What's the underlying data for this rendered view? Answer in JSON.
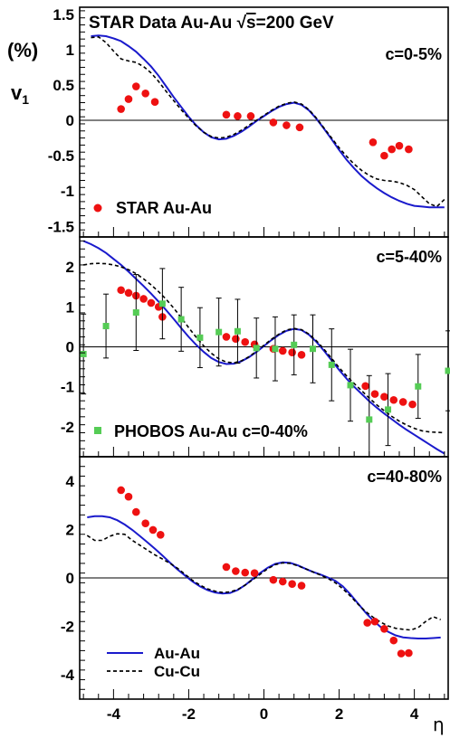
{
  "figure": {
    "title_prefix": "STAR Data  Au-Au  ",
    "title_sqrt": "√",
    "title_s": "s",
    "title_suffix": "=200 GeV",
    "ylabel_top": "(%)",
    "ylabel_v": "v",
    "ylabel_sub": "1",
    "xlabel": "η"
  },
  "colors": {
    "star": "#ee1111",
    "phobos": "#55cc55",
    "au_line": "#1a1acc",
    "cu_line": "#000000"
  },
  "legend": {
    "au": "Au-Au",
    "cu": "Cu-Cu"
  },
  "chart_data": [
    {
      "type": "scatter",
      "centrality_label": "c=0-5%",
      "data_legend": "STAR  Au-Au",
      "xlabel": "η",
      "ylabel": "v1 (%)",
      "xlim": [
        -4.9,
        4.9
      ],
      "ylim": [
        -1.65,
        1.6
      ],
      "yticks": [
        -1.5,
        -1,
        -0.5,
        0,
        0.5,
        1,
        1.5
      ],
      "ytick_labels": [
        "-1.5",
        "-1",
        "-0.5",
        "0",
        "0.5",
        "1",
        "1.5"
      ],
      "series": [
        {
          "name": "STAR  Au-Au",
          "kind": "points",
          "x": [
            -3.8,
            -3.6,
            -3.4,
            -3.15,
            -2.9,
            -1.0,
            -0.7,
            -0.35,
            0.25,
            0.6,
            0.95,
            2.9,
            3.2,
            3.4,
            3.6,
            3.85
          ],
          "y": [
            0.16,
            0.3,
            0.48,
            0.38,
            0.26,
            0.08,
            0.06,
            0.06,
            -0.03,
            -0.07,
            -0.1,
            -0.31,
            -0.5,
            -0.41,
            -0.36,
            -0.41
          ]
        },
        {
          "name": "Au-Au",
          "kind": "line",
          "x": [
            -4.6,
            -4.4,
            -4.2,
            -4.0,
            -3.8,
            -3.6,
            -3.4,
            -3.2,
            -3.0,
            -2.8,
            -2.6,
            -2.4,
            -2.2,
            -2.0,
            -1.8,
            -1.6,
            -1.4,
            -1.2,
            -1.0,
            -0.8,
            -0.6,
            -0.4,
            -0.2,
            0.0,
            0.2,
            0.4,
            0.6,
            0.8,
            1.0,
            1.2,
            1.4,
            1.6,
            1.8,
            2.0,
            2.2,
            2.4,
            2.6,
            2.8,
            3.0,
            3.2,
            3.4,
            3.6,
            3.8,
            4.0,
            4.2,
            4.4,
            4.6,
            4.8
          ],
          "y": [
            1.19,
            1.2,
            1.19,
            1.16,
            1.12,
            1.05,
            0.97,
            0.87,
            0.76,
            0.63,
            0.48,
            0.33,
            0.19,
            0.05,
            -0.07,
            -0.17,
            -0.24,
            -0.27,
            -0.26,
            -0.22,
            -0.16,
            -0.09,
            -0.01,
            0.06,
            0.13,
            0.19,
            0.23,
            0.25,
            0.22,
            0.14,
            0.02,
            -0.12,
            -0.27,
            -0.42,
            -0.56,
            -0.68,
            -0.79,
            -0.88,
            -0.96,
            -1.03,
            -1.09,
            -1.14,
            -1.18,
            -1.21,
            -1.22,
            -1.23,
            -1.23,
            -1.23
          ]
        },
        {
          "name": "Cu-Cu",
          "kind": "line",
          "x": [
            -4.6,
            -4.4,
            -4.2,
            -4.0,
            -3.8,
            -3.6,
            -3.4,
            -3.2,
            -3.0,
            -2.8,
            -2.6,
            -2.4,
            -2.2,
            -2.0,
            -1.8,
            -1.6,
            -1.4,
            -1.2,
            -1.0,
            -0.8,
            -0.6,
            -0.4,
            -0.2,
            0.0,
            0.2,
            0.4,
            0.6,
            0.8,
            1.0,
            1.2,
            1.4,
            1.6,
            1.8,
            2.0,
            2.2,
            2.4,
            2.6,
            2.8,
            3.0,
            3.2,
            3.4,
            3.6,
            3.8,
            4.0,
            4.2,
            4.4,
            4.6,
            4.8
          ],
          "y": [
            1.17,
            1.18,
            1.1,
            0.98,
            0.87,
            0.84,
            0.82,
            0.76,
            0.67,
            0.55,
            0.41,
            0.28,
            0.15,
            0.03,
            -0.08,
            -0.17,
            -0.23,
            -0.25,
            -0.24,
            -0.2,
            -0.14,
            -0.07,
            0.0,
            0.07,
            0.14,
            0.2,
            0.24,
            0.26,
            0.23,
            0.15,
            0.03,
            -0.11,
            -0.25,
            -0.39,
            -0.51,
            -0.62,
            -0.71,
            -0.78,
            -0.83,
            -0.85,
            -0.86,
            -0.88,
            -0.92,
            -0.98,
            -1.08,
            -1.18,
            -1.22,
            -1.12
          ]
        }
      ]
    },
    {
      "type": "scatter",
      "centrality_label": "c=5-40%",
      "data_legend": "PHOBOS  Au-Au  c=0-40%",
      "xlabel": "η",
      "ylabel": "v1 (%)",
      "xlim": [
        -4.9,
        4.9
      ],
      "ylim": [
        -2.75,
        2.75
      ],
      "yticks": [
        -2,
        -1,
        0,
        1,
        2
      ],
      "ytick_labels": [
        "-2",
        "-1",
        "0",
        "1",
        "2"
      ],
      "series": [
        {
          "name": "STAR",
          "kind": "points",
          "x": [
            -3.8,
            -3.6,
            -3.4,
            -3.2,
            -3.0,
            -2.8,
            -2.7,
            -1.0,
            -0.75,
            -0.5,
            -0.25,
            0.25,
            0.5,
            0.75,
            1.0,
            2.7,
            2.95,
            3.2,
            3.45,
            3.7,
            3.95
          ],
          "y": [
            1.42,
            1.35,
            1.28,
            1.2,
            1.1,
            1.0,
            0.75,
            0.25,
            0.2,
            0.12,
            0.06,
            -0.05,
            -0.1,
            -0.14,
            -0.2,
            -0.98,
            -1.18,
            -1.25,
            -1.33,
            -1.38,
            -1.44
          ]
        },
        {
          "name": "PHOBOS  Au-Au  c=0-40%",
          "kind": "errorbars",
          "x": [
            -4.8,
            -4.2,
            -3.4,
            -2.7,
            -2.2,
            -1.7,
            -1.2,
            -0.7,
            -0.2,
            0.3,
            0.8,
            1.3,
            1.8,
            2.3,
            2.8,
            3.3,
            4.1,
            4.9
          ],
          "y": [
            -0.18,
            0.52,
            0.86,
            1.08,
            0.69,
            0.23,
            0.37,
            0.39,
            -0.03,
            -0.05,
            0.05,
            -0.05,
            -0.45,
            -0.96,
            -1.82,
            -1.57,
            -0.99,
            -0.6
          ],
          "err": [
            1.0,
            0.8,
            0.95,
            0.88,
            0.8,
            0.75,
            0.85,
            0.8,
            0.75,
            0.8,
            0.75,
            0.85,
            0.9,
            0.9,
            1.1,
            0.9,
            0.8,
            1.0
          ]
        },
        {
          "name": "Au-Au",
          "kind": "line",
          "x": [
            -4.8,
            -4.6,
            -4.4,
            -4.2,
            -4.0,
            -3.8,
            -3.6,
            -3.4,
            -3.2,
            -3.0,
            -2.8,
            -2.6,
            -2.4,
            -2.2,
            -2.0,
            -1.8,
            -1.6,
            -1.4,
            -1.2,
            -1.0,
            -0.8,
            -0.6,
            -0.4,
            -0.2,
            0.0,
            0.2,
            0.4,
            0.6,
            0.8,
            1.0,
            1.2,
            1.4,
            1.6,
            1.8,
            2.0,
            2.2,
            2.4,
            2.6,
            2.8,
            3.0,
            3.2,
            3.4,
            3.6,
            3.8,
            4.0,
            4.2,
            4.4,
            4.6,
            4.8
          ],
          "y": [
            2.65,
            2.57,
            2.47,
            2.35,
            2.2,
            2.05,
            1.88,
            1.7,
            1.52,
            1.33,
            1.13,
            0.92,
            0.7,
            0.47,
            0.25,
            0.05,
            -0.13,
            -0.28,
            -0.38,
            -0.43,
            -0.42,
            -0.36,
            -0.26,
            -0.13,
            0.02,
            0.17,
            0.3,
            0.4,
            0.45,
            0.42,
            0.3,
            0.12,
            -0.1,
            -0.34,
            -0.58,
            -0.8,
            -1.0,
            -1.18,
            -1.36,
            -1.52,
            -1.67,
            -1.81,
            -1.95,
            -2.08,
            -2.2,
            -2.32,
            -2.44,
            -2.56,
            -2.67
          ]
        },
        {
          "name": "Cu-Cu",
          "kind": "line",
          "x": [
            -4.8,
            -4.6,
            -4.4,
            -4.2,
            -4.0,
            -3.8,
            -3.6,
            -3.4,
            -3.2,
            -3.0,
            -2.8,
            -2.6,
            -2.4,
            -2.2,
            -2.0,
            -1.8,
            -1.6,
            -1.4,
            -1.2,
            -1.0,
            -0.8,
            -0.6,
            -0.4,
            -0.2,
            0.0,
            0.2,
            0.4,
            0.6,
            0.8,
            1.0,
            1.2,
            1.4,
            1.6,
            1.8,
            2.0,
            2.2,
            2.4,
            2.6,
            2.8,
            3.0,
            3.2,
            3.4,
            3.6,
            3.8,
            4.0,
            4.2,
            4.4,
            4.6,
            4.8
          ],
          "y": [
            2.05,
            2.08,
            2.09,
            2.08,
            2.05,
            2.0,
            1.93,
            1.83,
            1.7,
            1.55,
            1.38,
            1.19,
            0.97,
            0.73,
            0.48,
            0.24,
            0.02,
            -0.16,
            -0.3,
            -0.38,
            -0.4,
            -0.35,
            -0.25,
            -0.11,
            0.04,
            0.19,
            0.32,
            0.42,
            0.46,
            0.43,
            0.32,
            0.15,
            -0.06,
            -0.29,
            -0.52,
            -0.73,
            -0.92,
            -1.1,
            -1.28,
            -1.45,
            -1.6,
            -1.74,
            -1.86,
            -1.96,
            -2.04,
            -2.1,
            -2.13,
            -2.14,
            -2.15
          ]
        }
      ]
    },
    {
      "type": "scatter",
      "centrality_label": "c=40-80%",
      "xlabel": "η",
      "ylabel": "v1 (%)",
      "xlim": [
        -4.9,
        4.9
      ],
      "ylim": [
        -5.0,
        5.0
      ],
      "xticks": [
        -4,
        -2,
        0,
        2,
        4
      ],
      "xtick_labels": [
        "-4",
        "-2",
        "0",
        "2",
        "4"
      ],
      "yticks": [
        -4,
        -2,
        0,
        2,
        4
      ],
      "ytick_labels": [
        "-4",
        "-2",
        "0",
        "2",
        "4"
      ],
      "series": [
        {
          "name": "STAR",
          "kind": "points",
          "x": [
            -3.8,
            -3.6,
            -3.4,
            -3.15,
            -2.95,
            -2.75,
            -1.0,
            -0.75,
            -0.5,
            -0.25,
            0.25,
            0.5,
            0.75,
            1.0,
            2.75,
            2.95,
            3.2,
            3.45,
            3.65,
            3.85
          ],
          "y": [
            3.62,
            3.35,
            2.72,
            2.25,
            1.98,
            1.78,
            0.45,
            0.28,
            0.22,
            0.2,
            -0.08,
            -0.15,
            -0.25,
            -0.32,
            -1.85,
            -1.8,
            -2.1,
            -2.58,
            -3.12,
            -3.1
          ]
        },
        {
          "name": "Au-Au",
          "kind": "line",
          "x": [
            -4.7,
            -4.5,
            -4.3,
            -4.1,
            -3.9,
            -3.7,
            -3.5,
            -3.3,
            -3.1,
            -2.9,
            -2.7,
            -2.5,
            -2.3,
            -2.1,
            -1.9,
            -1.7,
            -1.5,
            -1.3,
            -1.1,
            -0.9,
            -0.7,
            -0.5,
            -0.3,
            -0.1,
            0.1,
            0.3,
            0.5,
            0.7,
            0.9,
            1.1,
            1.3,
            1.5,
            1.7,
            1.9,
            2.1,
            2.3,
            2.5,
            2.7,
            2.9,
            3.1,
            3.3,
            3.5,
            3.7,
            3.9,
            4.1,
            4.3,
            4.5,
            4.7
          ],
          "y": [
            2.5,
            2.55,
            2.55,
            2.5,
            2.38,
            2.2,
            1.98,
            1.73,
            1.47,
            1.2,
            0.92,
            0.63,
            0.35,
            0.1,
            -0.15,
            -0.35,
            -0.5,
            -0.6,
            -0.64,
            -0.62,
            -0.5,
            -0.3,
            -0.05,
            0.2,
            0.42,
            0.58,
            0.64,
            0.62,
            0.52,
            0.38,
            0.25,
            0.14,
            0.02,
            -0.12,
            -0.35,
            -0.68,
            -1.05,
            -1.42,
            -1.75,
            -2.02,
            -2.22,
            -2.37,
            -2.45,
            -2.48,
            -2.5,
            -2.5,
            -2.48,
            -2.46
          ]
        },
        {
          "name": "Cu-Cu",
          "kind": "line",
          "x": [
            -4.7,
            -4.5,
            -4.3,
            -4.1,
            -3.9,
            -3.7,
            -3.5,
            -3.3,
            -3.1,
            -2.9,
            -2.7,
            -2.5,
            -2.3,
            -2.1,
            -1.9,
            -1.7,
            -1.5,
            -1.3,
            -1.1,
            -0.9,
            -0.7,
            -0.5,
            -0.3,
            -0.1,
            0.1,
            0.3,
            0.5,
            0.7,
            0.9,
            1.1,
            1.3,
            1.5,
            1.7,
            1.9,
            2.1,
            2.3,
            2.5,
            2.7,
            2.9,
            3.1,
            3.3,
            3.5,
            3.7,
            3.9,
            4.1,
            4.3,
            4.5,
            4.7
          ],
          "y": [
            1.75,
            1.55,
            1.55,
            1.72,
            1.82,
            1.8,
            1.55,
            1.35,
            1.15,
            0.95,
            0.78,
            0.6,
            0.4,
            0.15,
            -0.1,
            -0.3,
            -0.45,
            -0.55,
            -0.6,
            -0.58,
            -0.48,
            -0.3,
            -0.08,
            0.15,
            0.38,
            0.55,
            0.62,
            0.6,
            0.5,
            0.38,
            0.25,
            0.12,
            -0.02,
            -0.2,
            -0.45,
            -0.75,
            -1.08,
            -1.38,
            -1.62,
            -1.82,
            -1.98,
            -2.08,
            -2.12,
            -2.15,
            -2.05,
            -1.8,
            -1.6,
            -1.72
          ]
        }
      ]
    }
  ]
}
